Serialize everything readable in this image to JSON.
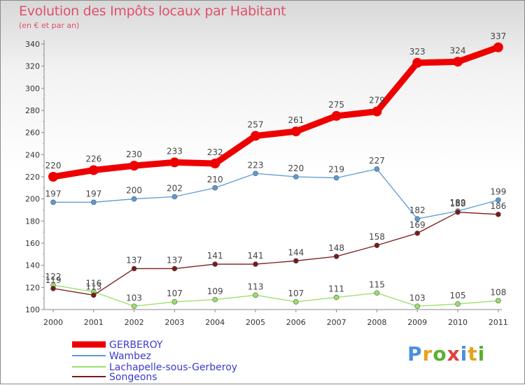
{
  "title": "Evolution des Impôts locaux par Habitant",
  "subtitle": "(en € et par an)",
  "logo_text": "Proxiti",
  "chart_data": {
    "type": "line",
    "x": [
      "2000",
      "2001",
      "2002",
      "2003",
      "2004",
      "2005",
      "2006",
      "2007",
      "2008",
      "2009",
      "2010",
      "2011"
    ],
    "ylim": [
      100,
      340
    ],
    "yticks": [
      100,
      120,
      140,
      160,
      180,
      200,
      220,
      240,
      260,
      280,
      300,
      320,
      340
    ],
    "grid": false,
    "legend_position": "bottom-left",
    "series": [
      {
        "name": "GERBEROY",
        "color": "#ee0000",
        "values": [
          220,
          226,
          230,
          233,
          232,
          257,
          261,
          275,
          279,
          323,
          324,
          337
        ]
      },
      {
        "name": "Wambez",
        "color": "#5a9bd4",
        "values": [
          197,
          197,
          200,
          202,
          210,
          223,
          220,
          219,
          227,
          182,
          189,
          199
        ]
      },
      {
        "name": "Lachapelle-sous-Gerberoy",
        "color": "#99e066",
        "values": [
          122,
          116,
          103,
          107,
          109,
          113,
          107,
          111,
          115,
          103,
          105,
          108
        ]
      },
      {
        "name": "Songeons",
        "color": "#7a1a1a",
        "values": [
          119,
          113,
          137,
          137,
          141,
          141,
          144,
          148,
          158,
          169,
          188,
          186
        ]
      }
    ]
  }
}
